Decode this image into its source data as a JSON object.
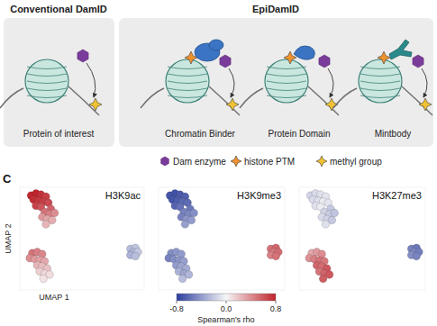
{
  "diagram": {
    "panels": [
      {
        "title": "Conventional DamID",
        "items": [
          {
            "label": "Protein of interest"
          }
        ]
      },
      {
        "title": "EpiDamID",
        "items": [
          {
            "label": "Chromatin Binder"
          },
          {
            "label": "Protein Domain"
          },
          {
            "label": "Mintbody"
          }
        ]
      }
    ],
    "legend": [
      {
        "label": "Dam enzyme"
      },
      {
        "label": "histone PTM"
      },
      {
        "label": "methyl group"
      }
    ]
  },
  "panel_label": "C",
  "colorbar": {
    "label": "Spearman's rho",
    "range": [
      -0.8,
      0.8
    ],
    "ticks": [
      -0.8,
      {
        "value": 0,
        "label": "0.0"
      },
      0.8
    ]
  },
  "chart_data": [
    {
      "type": "scatter",
      "title": "H3K9ac",
      "x_label": "UMAP 1",
      "y_label": "UMAP 2",
      "tick_labels": false,
      "xlim": [
        0,
        10
      ],
      "ylim": [
        0,
        10
      ],
      "x": [
        0.9,
        1.3,
        1.7,
        2.1,
        1.1,
        1.5,
        1.9,
        2.3,
        1.3,
        1.7,
        2.5,
        2.0,
        2.4,
        2.8,
        1.8,
        2.2,
        2.6,
        2.1,
        1.0,
        1.4,
        1.8,
        0.8,
        1.2,
        1.6,
        2.0,
        1.4,
        1.8,
        2.2,
        1.6,
        2.0,
        2.4,
        1.9,
        8.9,
        9.3,
        9.1,
        9.5,
        8.9,
        9.3
      ],
      "values": [
        9.2,
        9.4,
        9.3,
        9.1,
        8.8,
        8.7,
        8.6,
        8.5,
        8.2,
        8.1,
        7.9,
        7.6,
        7.4,
        7.5,
        7.1,
        6.9,
        6.8,
        6.4,
        3.6,
        3.7,
        3.5,
        3.1,
        3.0,
        2.9,
        2.8,
        2.4,
        2.3,
        2.1,
        1.8,
        1.6,
        1.5,
        1.1,
        4.0,
        4.1,
        3.7,
        3.7,
        3.4,
        3.3
      ],
      "color_values": [
        0.78,
        0.8,
        0.75,
        0.7,
        0.76,
        0.72,
        0.7,
        0.65,
        0.68,
        0.62,
        0.55,
        0.5,
        0.45,
        0.4,
        0.35,
        0.3,
        0.28,
        0.25,
        0.5,
        0.45,
        0.42,
        0.4,
        0.35,
        0.32,
        0.3,
        0.25,
        0.22,
        0.2,
        0.15,
        0.12,
        0.1,
        0.08,
        -0.25,
        -0.22,
        -0.28,
        -0.2,
        -0.3,
        -0.25
      ]
    },
    {
      "type": "scatter",
      "title": "H3K9me3",
      "tick_labels": false,
      "xlim": [
        0,
        10
      ],
      "ylim": [
        0,
        10
      ],
      "x": [
        0.9,
        1.3,
        1.7,
        2.1,
        1.1,
        1.5,
        1.9,
        2.3,
        1.3,
        1.7,
        2.5,
        2.0,
        2.4,
        2.8,
        1.8,
        2.2,
        2.6,
        2.1,
        1.0,
        1.4,
        1.8,
        0.8,
        1.2,
        1.6,
        2.0,
        1.4,
        1.8,
        2.2,
        1.6,
        2.0,
        2.4,
        1.9,
        8.9,
        9.3,
        9.1,
        9.5,
        8.9,
        9.3
      ],
      "values": [
        9.2,
        9.4,
        9.3,
        9.1,
        8.8,
        8.7,
        8.6,
        8.5,
        8.2,
        8.1,
        7.9,
        7.6,
        7.4,
        7.5,
        7.1,
        6.9,
        6.8,
        6.4,
        3.6,
        3.7,
        3.5,
        3.1,
        3.0,
        2.9,
        2.8,
        2.4,
        2.3,
        2.1,
        1.8,
        1.6,
        1.5,
        1.1,
        4.0,
        4.1,
        3.7,
        3.7,
        3.4,
        3.3
      ],
      "color_values": [
        -0.7,
        -0.72,
        -0.68,
        -0.65,
        -0.7,
        -0.66,
        -0.62,
        -0.6,
        -0.64,
        -0.58,
        -0.55,
        -0.5,
        -0.48,
        -0.45,
        -0.5,
        -0.42,
        -0.4,
        -0.38,
        -0.45,
        -0.42,
        -0.4,
        -0.5,
        -0.45,
        -0.42,
        -0.38,
        -0.4,
        -0.35,
        -0.32,
        -0.3,
        -0.35,
        -0.28,
        -0.25,
        0.5,
        0.55,
        0.48,
        0.52,
        0.45,
        0.5
      ]
    },
    {
      "type": "scatter",
      "title": "H3K27me3",
      "tick_labels": false,
      "xlim": [
        0,
        10
      ],
      "ylim": [
        0,
        10
      ],
      "x": [
        0.9,
        1.3,
        1.7,
        2.1,
        1.1,
        1.5,
        1.9,
        2.3,
        1.3,
        1.7,
        2.5,
        2.0,
        2.4,
        2.8,
        1.8,
        2.2,
        2.6,
        2.1,
        1.0,
        1.4,
        1.8,
        0.8,
        1.2,
        1.6,
        2.0,
        1.4,
        1.8,
        2.2,
        1.6,
        2.0,
        2.4,
        1.9,
        8.9,
        9.3,
        9.1,
        9.5,
        8.9,
        9.3
      ],
      "values": [
        9.2,
        9.4,
        9.3,
        9.1,
        8.8,
        8.7,
        8.6,
        8.5,
        8.2,
        8.1,
        7.9,
        7.6,
        7.4,
        7.5,
        7.1,
        6.9,
        6.8,
        6.4,
        3.6,
        3.7,
        3.5,
        3.1,
        3.0,
        2.9,
        2.8,
        2.4,
        2.3,
        2.1,
        1.8,
        1.6,
        1.5,
        1.1,
        4.0,
        4.1,
        3.7,
        3.7,
        3.4,
        3.3
      ],
      "color_values": [
        -0.15,
        -0.12,
        -0.1,
        -0.08,
        -0.12,
        -0.1,
        -0.05,
        -0.08,
        -0.1,
        -0.05,
        -0.2,
        -0.15,
        -0.18,
        -0.22,
        -0.12,
        -0.15,
        -0.2,
        -0.1,
        0.3,
        0.35,
        0.4,
        0.38,
        0.45,
        0.5,
        0.48,
        0.55,
        0.52,
        0.6,
        0.5,
        0.55,
        0.6,
        0.58,
        -0.5,
        -0.55,
        -0.48,
        -0.52,
        -0.45,
        -0.5
      ]
    }
  ]
}
